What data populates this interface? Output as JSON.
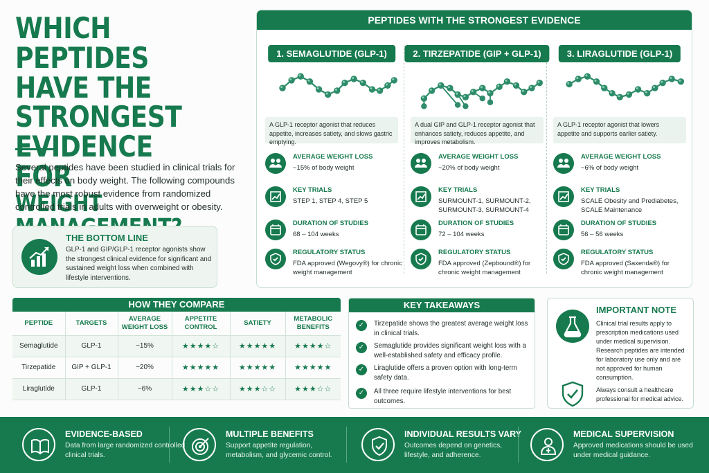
{
  "title": {
    "line1": "Which Peptides",
    "line2": "Have the Strongest",
    "line3": "Evidence for",
    "line4": "Weight Management?"
  },
  "intro": "Several peptides have been studied in clinical trials for their effects on body weight. The following compounds have the most robust evidence from randomized controlled trials in adults with overweight or obesity.",
  "bottom_line": {
    "heading": "THE BOTTOM LINE",
    "text": "GLP-1 and GIP/GLP-1 receptor agonists show the strongest clinical evidence for significant and sustained weight loss when combined with lifestyle interventions.",
    "icon": "trend-up-chart-icon"
  },
  "strongest": {
    "heading": "PEPTIDES WITH THE STRONGEST EVIDENCE",
    "label_weight": "AVERAGE WEIGHT LOSS",
    "label_trials": "KEY TRIALS",
    "label_duration": "DURATION OF STUDIES",
    "label_status": "REGULATORY STATUS",
    "peptides": [
      {
        "name": "1. SEMAGLUTIDE (GLP-1)",
        "desc": "A GLP-1 receptor agonist that reduces appetite, increases satiety, and slows gastric emptying.",
        "weight": "~15% of body weight",
        "trials": "STEP 1, STEP 4, STEP 5",
        "duration": "68 – 104 weeks",
        "status": "FDA approved (Wegovy®) for chronic weight management"
      },
      {
        "name": "2. TIRZEPATIDE (GIP + GLP-1)",
        "desc": "A dual GIP and GLP-1 receptor agonist that enhances satiety, reduces appetite, and improves metabolism.",
        "weight": "~20% of body weight",
        "trials": "SURMOUNT-1, SURMOUNT-2, SURMOUNT-3, SURMOUNT-4",
        "duration": "72 – 104 weeks",
        "status": "FDA approved (Zepbound®) for chronic weight management"
      },
      {
        "name": "3. LIRAGLUTIDE (GLP-1)",
        "desc": "A GLP-1 receptor agonist that lowers appetite and supports earlier satiety.",
        "weight": "~6% of body weight",
        "trials": "SCALE Obesity and Prediabetes, SCALE Maintenance",
        "duration": "56 – 56 weeks",
        "status": "FDA approved (Saxenda®) for chronic weight management"
      }
    ]
  },
  "compare": {
    "heading": "HOW THEY COMPARE",
    "headers": [
      "PEPTIDE",
      "TARGETS",
      "AVERAGE WEIGHT LOSS",
      "APPETITE CONTROL",
      "SATIETY",
      "METABOLIC BENEFITS"
    ],
    "rows": [
      {
        "peptide": "Semaglutide",
        "targets": "GLP-1",
        "loss": "~15%",
        "appetite": 4,
        "satiety": 5,
        "metabolic": 4
      },
      {
        "peptide": "Tirzepatide",
        "targets": "GIP + GLP-1",
        "loss": "~20%",
        "appetite": 5,
        "satiety": 5,
        "metabolic": 5
      },
      {
        "peptide": "Liraglutide",
        "targets": "GLP-1",
        "loss": "~6%",
        "appetite": 3,
        "satiety": 3,
        "metabolic": 3
      }
    ],
    "stars_max": 5
  },
  "takeaways": {
    "heading": "KEY TAKEAWAYS",
    "items": [
      "Tirzepatide shows the greatest average weight loss in clinical trials.",
      "Semaglutide provides significant weight loss with a well-established safety and efficacy profile.",
      "Liraglutide offers a proven option with long-term safety data.",
      "All three require lifestyle interventions for best outcomes."
    ]
  },
  "note": {
    "heading": "IMPORTANT NOTE",
    "text1": "Clinical trial results apply to prescription medications used under medical supervision. Research peptides are intended for laboratory use only and are not approved for human consumption.",
    "text2": "Always consult a healthcare professional for medical advice."
  },
  "footer": [
    {
      "title": "EVIDENCE-BASED",
      "text": "Data from large randomized controlled clinical trials.",
      "icon": "open-book-icon"
    },
    {
      "title": "MULTIPLE BENEFITS",
      "text": "Support appetite regulation, metabolism, and glycemic control.",
      "icon": "target-icon"
    },
    {
      "title": "INDIVIDUAL RESULTS VARY",
      "text": "Outcomes depend on genetics, lifestyle, and adherence.",
      "icon": "shield-check-icon"
    },
    {
      "title": "MEDICAL SUPERVISION",
      "text": "Approved medications should be used under medical guidance.",
      "icon": "doctor-icon"
    }
  ],
  "colors": {
    "accent": "#167a4e",
    "light": "#eaf3ee",
    "molecule": "#2e8c6a"
  }
}
